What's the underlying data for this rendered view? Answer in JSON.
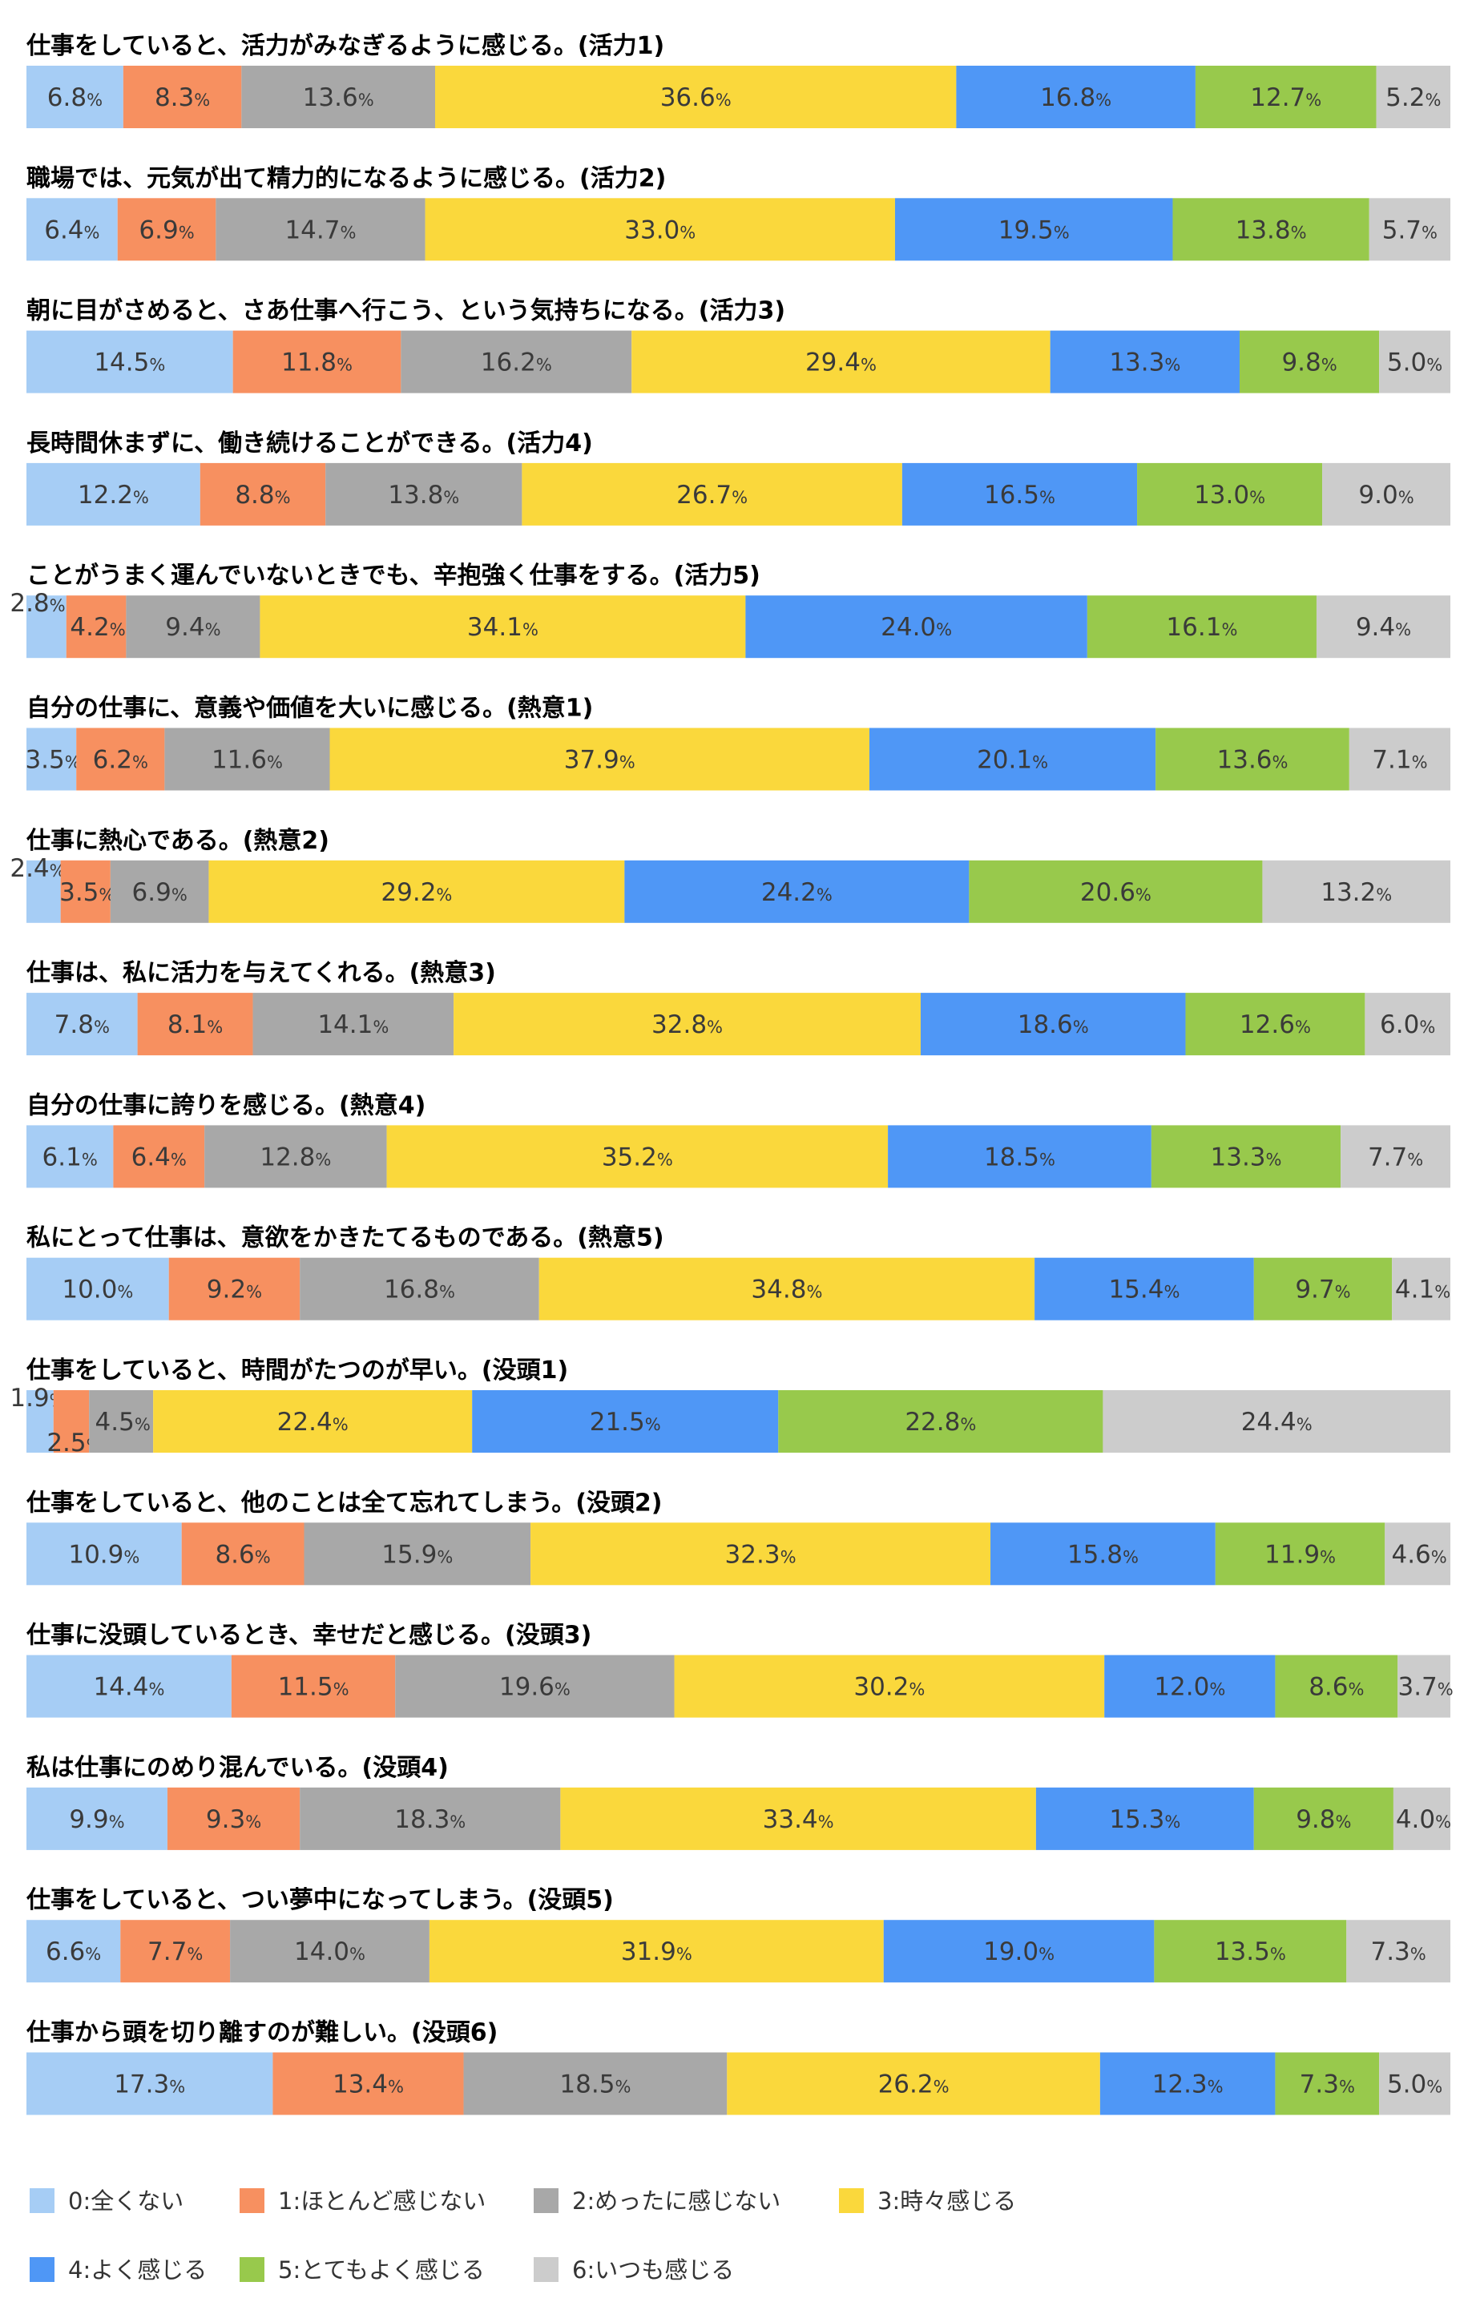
{
  "chart_data": {
    "type": "bar",
    "orientation": "horizontal-stacked-100",
    "unit": "%",
    "categories": [
      "仕事をしていると、活力がみなぎるように感じる。(活力1)",
      "職場では、元気が出て精力的になるように感じる。(活力2)",
      "朝に目がさめると、さあ仕事へ行こう、という気持ちになる。(活力3)",
      "長時間休まずに、働き続けることができる。(活力4)",
      "ことがうまく運んでいないときでも、辛抱強く仕事をする。(活力5)",
      "自分の仕事に、意義や価値を大いに感じる。(熱意1)",
      "仕事に熱心である。(熱意2)",
      "仕事は、私に活力を与えてくれる。(熱意3)",
      "自分の仕事に誇りを感じる。(熱意4)",
      "私にとって仕事は、意欲をかきたてるものである。(熱意5)",
      "仕事をしていると、時間がたつのが早い。(没頭1)",
      "仕事をしていると、他のことは全て忘れてしまう。(没頭2)",
      "仕事に没頭しているとき、幸せだと感じる。(没頭3)",
      "私は仕事にのめり混んでいる。(没頭4)",
      "仕事をしていると、つい夢中になってしまう。(没頭5)",
      "仕事から頭を切り離すのが難しい。(没頭6)"
    ],
    "series": [
      {
        "name": "0:全くない",
        "color": "#a6cdf5",
        "values": [
          6.8,
          6.4,
          14.5,
          12.2,
          2.8,
          3.5,
          2.4,
          7.8,
          6.1,
          10.0,
          1.9,
          10.9,
          14.4,
          9.9,
          6.6,
          17.3
        ]
      },
      {
        "name": "1:ほとんど感じない",
        "color": "#f79060",
        "values": [
          8.3,
          6.9,
          11.8,
          8.8,
          4.2,
          6.2,
          3.5,
          8.1,
          6.4,
          9.2,
          2.5,
          8.6,
          11.5,
          9.3,
          7.7,
          13.4
        ]
      },
      {
        "name": "2:めったに感じない",
        "color": "#a8a8a8",
        "values": [
          13.6,
          14.7,
          16.2,
          13.8,
          9.4,
          11.6,
          6.9,
          14.1,
          12.8,
          16.8,
          4.5,
          15.9,
          19.6,
          18.3,
          14.0,
          18.5
        ]
      },
      {
        "name": "3:時々感じる",
        "color": "#fad83c",
        "values": [
          36.6,
          33.0,
          29.4,
          26.7,
          34.1,
          37.9,
          29.2,
          32.8,
          35.2,
          34.8,
          22.4,
          32.3,
          30.2,
          33.4,
          31.9,
          26.2
        ]
      },
      {
        "name": "4:よく感じる",
        "color": "#4f97f6",
        "values": [
          16.8,
          19.5,
          13.3,
          16.5,
          24.0,
          20.1,
          24.2,
          18.6,
          18.5,
          15.4,
          21.5,
          15.8,
          12.0,
          15.3,
          19.0,
          12.3
        ]
      },
      {
        "name": "5:とてもよく感じる",
        "color": "#98c94c",
        "values": [
          12.7,
          13.8,
          9.8,
          13.0,
          16.1,
          13.6,
          20.6,
          12.6,
          13.3,
          9.7,
          22.8,
          11.9,
          8.6,
          9.8,
          13.5,
          7.3
        ]
      },
      {
        "name": "6:いつも感じる",
        "color": "#cccccc",
        "values": [
          5.2,
          5.7,
          5.0,
          9.0,
          9.4,
          7.1,
          13.2,
          6.0,
          7.7,
          4.1,
          24.4,
          4.6,
          3.7,
          4.0,
          7.3,
          5.0
        ]
      }
    ],
    "legend_position": "bottom",
    "grid": false
  }
}
